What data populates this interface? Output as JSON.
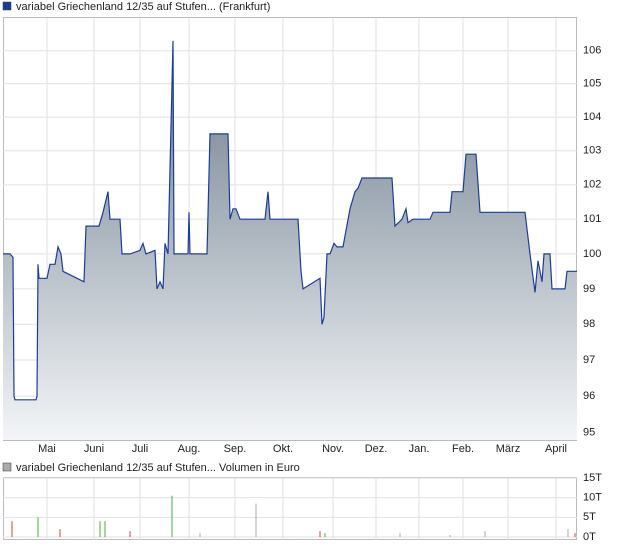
{
  "chart_data": [
    {
      "type": "area",
      "log_scale": true,
      "grid": true,
      "series": [
        {
          "name": "variabel Griechenland 12/35 auf Stufen... (Frankfurt)",
          "color": "#1c3c9c",
          "x": [
            0,
            7,
            10,
            11,
            12,
            20,
            33,
            34,
            35,
            36,
            44,
            47,
            52,
            55,
            58,
            60,
            81,
            83,
            96,
            100,
            105,
            107,
            117,
            119,
            127,
            137,
            140,
            143,
            152,
            154,
            157,
            160,
            162,
            165,
            169,
            170,
            171,
            185,
            186,
            187,
            204,
            207,
            225,
            227,
            230,
            233,
            237,
            262,
            265,
            267,
            295,
            298,
            300,
            317,
            319,
            321,
            324,
            327,
            331,
            334,
            340,
            347,
            352,
            355,
            359,
            389,
            392,
            399,
            403,
            405,
            410,
            427,
            430,
            447,
            449,
            460,
            463,
            473,
            477,
            522,
            527,
            532,
            535,
            539,
            541,
            547,
            549,
            562,
            564,
            574
          ],
          "values": [
            100,
            100,
            99.9,
            96,
            95.9,
            95.9,
            95.9,
            96,
            99.7,
            99.3,
            99.3,
            99.7,
            99.7,
            100.2,
            100,
            99.5,
            99.2,
            100.8,
            100.8,
            101.2,
            101.8,
            101,
            101,
            100,
            100,
            100.1,
            100.3,
            100,
            100.1,
            99,
            99.2,
            99,
            100.3,
            100,
            105,
            106.3,
            100,
            100,
            101.2,
            100,
            100,
            103.5,
            103.5,
            101,
            101.3,
            101.3,
            101,
            101,
            101.8,
            101,
            101,
            99.5,
            99,
            99.3,
            98,
            98.2,
            100,
            100,
            100.3,
            100.2,
            100.2,
            101.3,
            101.8,
            101.9,
            102.2,
            102.2,
            100.8,
            101,
            101.3,
            100.9,
            101,
            101,
            101.2,
            101.2,
            101.8,
            101.8,
            102.9,
            102.9,
            101.2,
            101.2,
            100,
            98.9,
            99.8,
            99.2,
            100,
            100,
            99,
            99,
            99.5,
            99.5
          ]
        }
      ],
      "xlim": [
        0,
        574
      ],
      "xticks": [
        {
          "value": 44,
          "label": "Mai"
        },
        {
          "value": 91,
          "label": "Juni"
        },
        {
          "value": 137,
          "label": "Juli"
        },
        {
          "value": 186,
          "label": "Aug."
        },
        {
          "value": 232,
          "label": "Sep."
        },
        {
          "value": 280,
          "label": "Okt."
        },
        {
          "value": 330,
          "label": "Nov."
        },
        {
          "value": 373,
          "label": "Dez."
        },
        {
          "value": 416,
          "label": "Jan."
        },
        {
          "value": 460,
          "label": "Feb."
        },
        {
          "value": 505,
          "label": "März"
        },
        {
          "value": 553,
          "label": "April"
        }
      ],
      "ylim": [
        94.8,
        107
      ],
      "yticks": [
        95,
        96,
        97,
        98,
        99,
        100,
        101,
        102,
        103,
        104,
        105,
        106
      ]
    },
    {
      "type": "bar",
      "grid": true,
      "series": [
        {
          "name": "variabel Griechenland 12/35 auf Stufen... Volumen in Euro",
          "color": "#aaaaaa",
          "x": [
            9,
            35,
            57,
            97,
            102,
            127,
            169,
            197,
            253,
            317,
            322,
            397,
            447,
            482,
            565,
            572
          ],
          "values": [
            4,
            5,
            2,
            4,
            4,
            1.5,
            10.5,
            1,
            8.5,
            1.5,
            1,
            1,
            0.5,
            1.5,
            2,
            1
          ],
          "colors": [
            "#d04040",
            "#40b040",
            "#d04040",
            "#40b040",
            "#40b040",
            "#d04040",
            "#40b040",
            "#aaaaaa",
            "#aaaaaa",
            "#d04040",
            "#40b040",
            "#aaaaaa",
            "#aaaaaa",
            "#aaaaaa",
            "#aaaaaa",
            "#d04040"
          ]
        }
      ],
      "xlim": [
        0,
        574
      ],
      "ylim": [
        0,
        15
      ],
      "yticks": [
        {
          "value": 0,
          "label": "0T"
        },
        {
          "value": 5,
          "label": "5T"
        },
        {
          "value": 10,
          "label": "10T"
        },
        {
          "value": 15,
          "label": "15T"
        }
      ]
    }
  ]
}
